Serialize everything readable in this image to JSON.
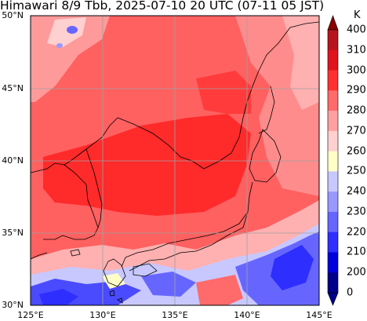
{
  "title": "Himawari 8/9 Tbb, 2025-07-10 20 UTC (07-11 05 JST)",
  "map": {
    "lat_labels": [
      "50°N",
      "45°N",
      "40°N",
      "35°N",
      "30°N"
    ],
    "lat_values": [
      50,
      45,
      40,
      35,
      30
    ],
    "lon_labels": [
      "125°E",
      "130°E",
      "135°E",
      "140°E",
      "145°E"
    ],
    "lon_values": [
      125,
      130,
      135,
      140,
      145
    ],
    "lat_range": [
      30,
      50
    ],
    "lon_range": [
      125,
      145
    ],
    "gridlines": true
  },
  "colorbar": {
    "unit": "K",
    "ticks": [
      "400",
      "310",
      "300",
      "290",
      "280",
      "270",
      "260",
      "250",
      "240",
      "230",
      "220",
      "210",
      "200",
      "0"
    ],
    "colors": [
      "#8b0000",
      "#b8141c",
      "#e0141c",
      "#ff3030",
      "#ff6a6a",
      "#ffa0a0",
      "#ffd0d0",
      "#ffffc8",
      "#c8c8ff",
      "#9898ff",
      "#6666ff",
      "#2e2eff",
      "#0000dc",
      "#00008b"
    ]
  }
}
